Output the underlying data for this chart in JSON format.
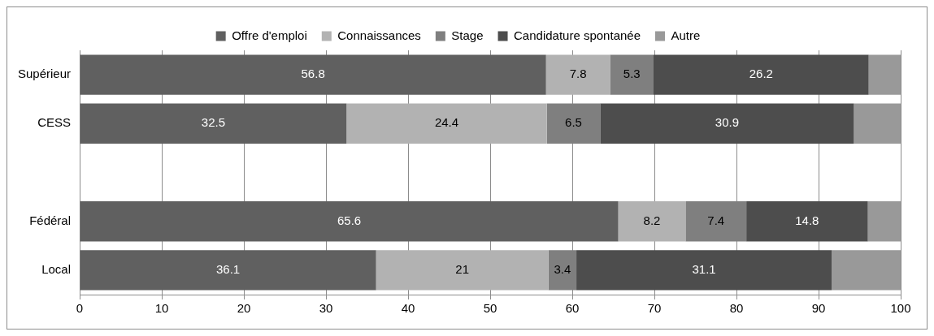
{
  "chart_data": {
    "type": "bar",
    "orientation": "horizontal",
    "stacked": true,
    "categories": [
      "Supérieur",
      "CESS",
      null,
      "Fédéral",
      "Local"
    ],
    "series": [
      {
        "name": "Offre d'emploi",
        "color": "#606060",
        "values": [
          56.8,
          32.5,
          null,
          65.6,
          36.1
        ],
        "value_labels": [
          "56.8",
          "32.5",
          null,
          "65.6",
          "36.1"
        ]
      },
      {
        "name": "Connaissances",
        "color": "#b2b2b2",
        "values": [
          7.8,
          24.4,
          null,
          8.2,
          21
        ],
        "value_labels": [
          "7.8",
          "24.4",
          null,
          "8.2",
          "21"
        ]
      },
      {
        "name": "Stage",
        "color": "#7f7f7f",
        "values": [
          5.3,
          6.5,
          null,
          7.4,
          3.4
        ],
        "value_labels": [
          "5.3",
          "6.5",
          null,
          "7.4",
          "3.4"
        ]
      },
      {
        "name": "Candidature spontanée",
        "color": "#4d4d4d",
        "values": [
          26.2,
          30.9,
          null,
          14.8,
          31.1
        ],
        "value_labels": [
          "26.2",
          "30.9",
          null,
          "14.8",
          "31.1"
        ]
      },
      {
        "name": "Autre",
        "color": "#999999",
        "values": [
          3.9,
          5.7,
          null,
          4.0,
          8.4
        ]
      }
    ],
    "xlim": [
      0,
      100
    ],
    "xticks": [
      0,
      10,
      20,
      30,
      40,
      50,
      60,
      70,
      80,
      90,
      100
    ],
    "grid": "x",
    "legend": "top"
  }
}
